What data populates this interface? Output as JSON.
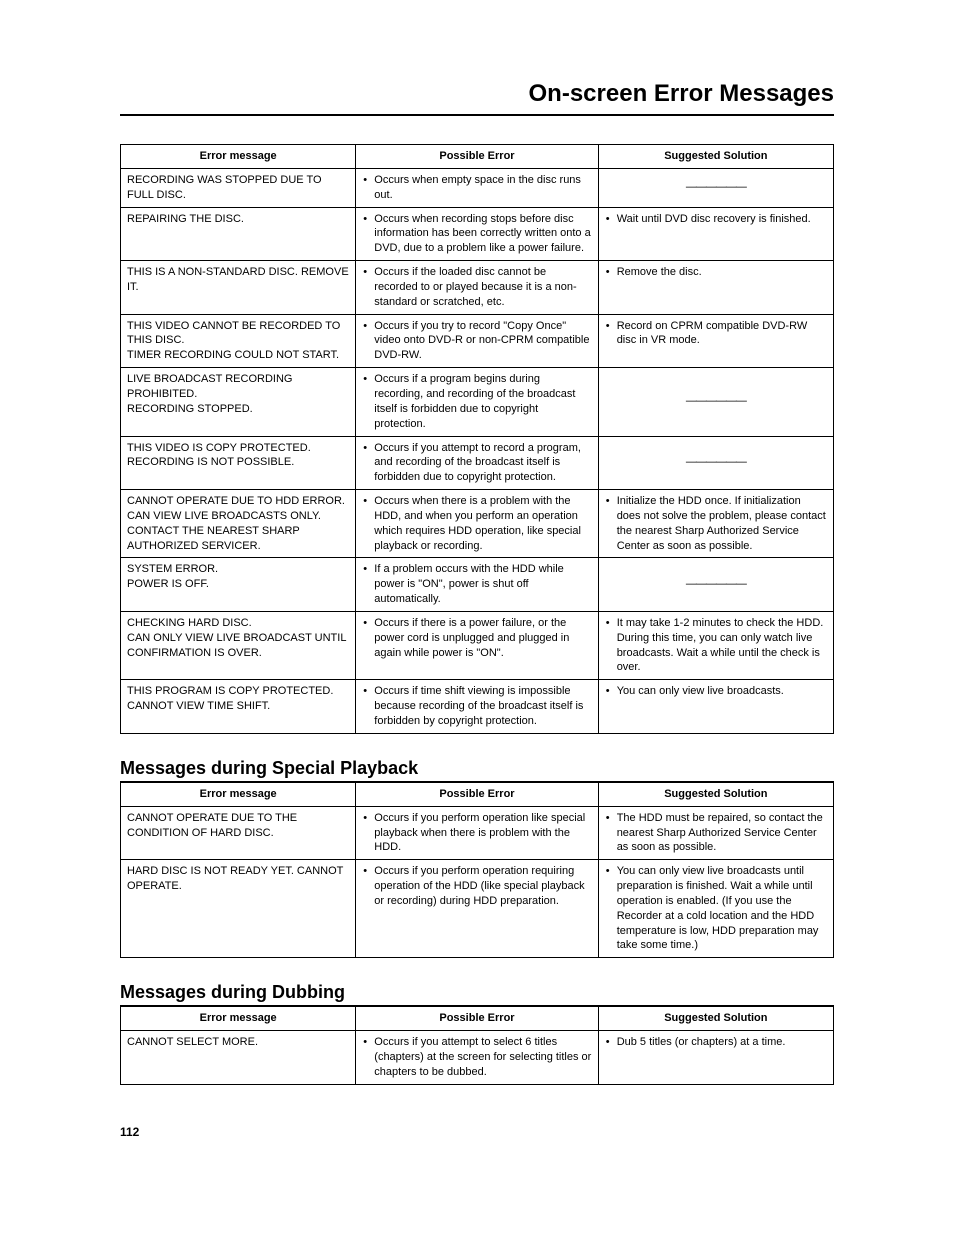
{
  "page_title": "On-screen Error Messages",
  "page_number": "112",
  "sections": [
    {
      "title": null,
      "headers": [
        "Error message",
        "Possible Error",
        "Suggested Solution"
      ],
      "rows": [
        {
          "msg": "RECORDING WAS STOPPED DUE TO FULL DISC.",
          "err": [
            "Occurs when empty space in the disc runs out."
          ],
          "sol_dash": true
        },
        {
          "msg": "REPAIRING THE DISC.",
          "err": [
            "Occurs when recording stops before disc information has been correctly written onto a DVD, due to a problem like a power failure."
          ],
          "sol": [
            "Wait until DVD disc recovery is finished."
          ]
        },
        {
          "msg": "THIS IS A NON-STANDARD DISC. REMOVE IT.",
          "err": [
            "Occurs if the loaded disc cannot be recorded to or played because it is a non-standard or scratched, etc."
          ],
          "sol": [
            "Remove the disc."
          ]
        },
        {
          "msg": "THIS VIDEO CANNOT BE RECORDED TO THIS DISC.\nTIMER RECORDING COULD NOT START.",
          "err": [
            "Occurs if you try to record \"Copy Once\" video onto DVD-R or non-CPRM compatible DVD-RW."
          ],
          "sol": [
            "Record on CPRM compatible DVD-RW disc in VR mode."
          ]
        },
        {
          "msg": "LIVE BROADCAST RECORDING PROHIBITED.\nRECORDING STOPPED.",
          "err": [
            "Occurs if a program begins during recording, and recording of the broadcast itself is forbidden due to copyright protection."
          ],
          "sol_dash": true
        },
        {
          "msg": "THIS VIDEO IS COPY PROTECTED. RECORDING IS NOT POSSIBLE.",
          "err": [
            "Occurs if you attempt to record a program, and recording of the broadcast itself is forbidden due to copyright protection."
          ],
          "sol_dash": true
        },
        {
          "msg": "CANNOT OPERATE DUE TO HDD ERROR.\nCAN VIEW LIVE BROADCASTS ONLY. CONTACT THE NEAREST SHARP AUTHORIZED SERVICER.",
          "err": [
            "Occurs when there is a problem with the HDD, and when you perform an operation which requires HDD operation, like special playback or recording."
          ],
          "sol": [
            "Initialize the HDD once. If initialization does not solve the problem, please contact the nearest Sharp Authorized Service Center as soon as possible."
          ]
        },
        {
          "msg": "SYSTEM ERROR.\nPOWER IS OFF.",
          "err": [
            "If a problem occurs with the HDD while power is \"ON\", power is shut off automatically."
          ],
          "sol_dash": true
        },
        {
          "msg": "CHECKING HARD DISC.\nCAN ONLY VIEW LIVE BROADCAST UNTIL CONFIRMATION IS OVER.",
          "err": [
            "Occurs if there is a power failure, or the power cord is unplugged and plugged in again while power is \"ON\"."
          ],
          "sol": [
            "It may take 1-2 minutes to check the HDD. During this time, you can only watch live broadcasts. Wait a while until the check is over."
          ]
        },
        {
          "msg": "THIS PROGRAM IS COPY PROTECTED.\nCANNOT VIEW TIME SHIFT.",
          "err": [
            "Occurs if time shift viewing is impossible because recording of the broadcast itself is forbidden by copyright protection."
          ],
          "sol": [
            "You can only view live broadcasts."
          ]
        }
      ]
    },
    {
      "title": "Messages during Special Playback",
      "headers": [
        "Error message",
        "Possible Error",
        "Suggested Solution"
      ],
      "rows": [
        {
          "msg": "CANNOT OPERATE DUE TO THE CONDITION OF HARD DISC.",
          "err": [
            "Occurs if you perform operation like special playback when there is problem with the HDD."
          ],
          "sol": [
            "The HDD must be repaired, so contact the nearest Sharp Authorized Service Center as soon as possible."
          ]
        },
        {
          "msg": "HARD DISC IS NOT READY YET. CANNOT OPERATE.",
          "err": [
            "Occurs if you perform operation requiring operation of the HDD (like special playback or recording) during HDD preparation."
          ],
          "sol": [
            "You can only view live broadcasts until preparation is finished. Wait a while until operation is enabled. (If you use the Recorder at a cold location and the HDD temperature is low, HDD preparation may take some time.)"
          ]
        }
      ]
    },
    {
      "title": "Messages during Dubbing",
      "headers": [
        "Error message",
        "Possible Error",
        "Suggested Solution"
      ],
      "rows": [
        {
          "msg": "CANNOT SELECT MORE.",
          "err": [
            "Occurs if you attempt to select 6 titles (chapters) at the screen for selecting titles or chapters to be dubbed."
          ],
          "sol": [
            "Dub 5 titles (or chapters) at a time."
          ]
        }
      ]
    }
  ],
  "dash_text": "——————"
}
